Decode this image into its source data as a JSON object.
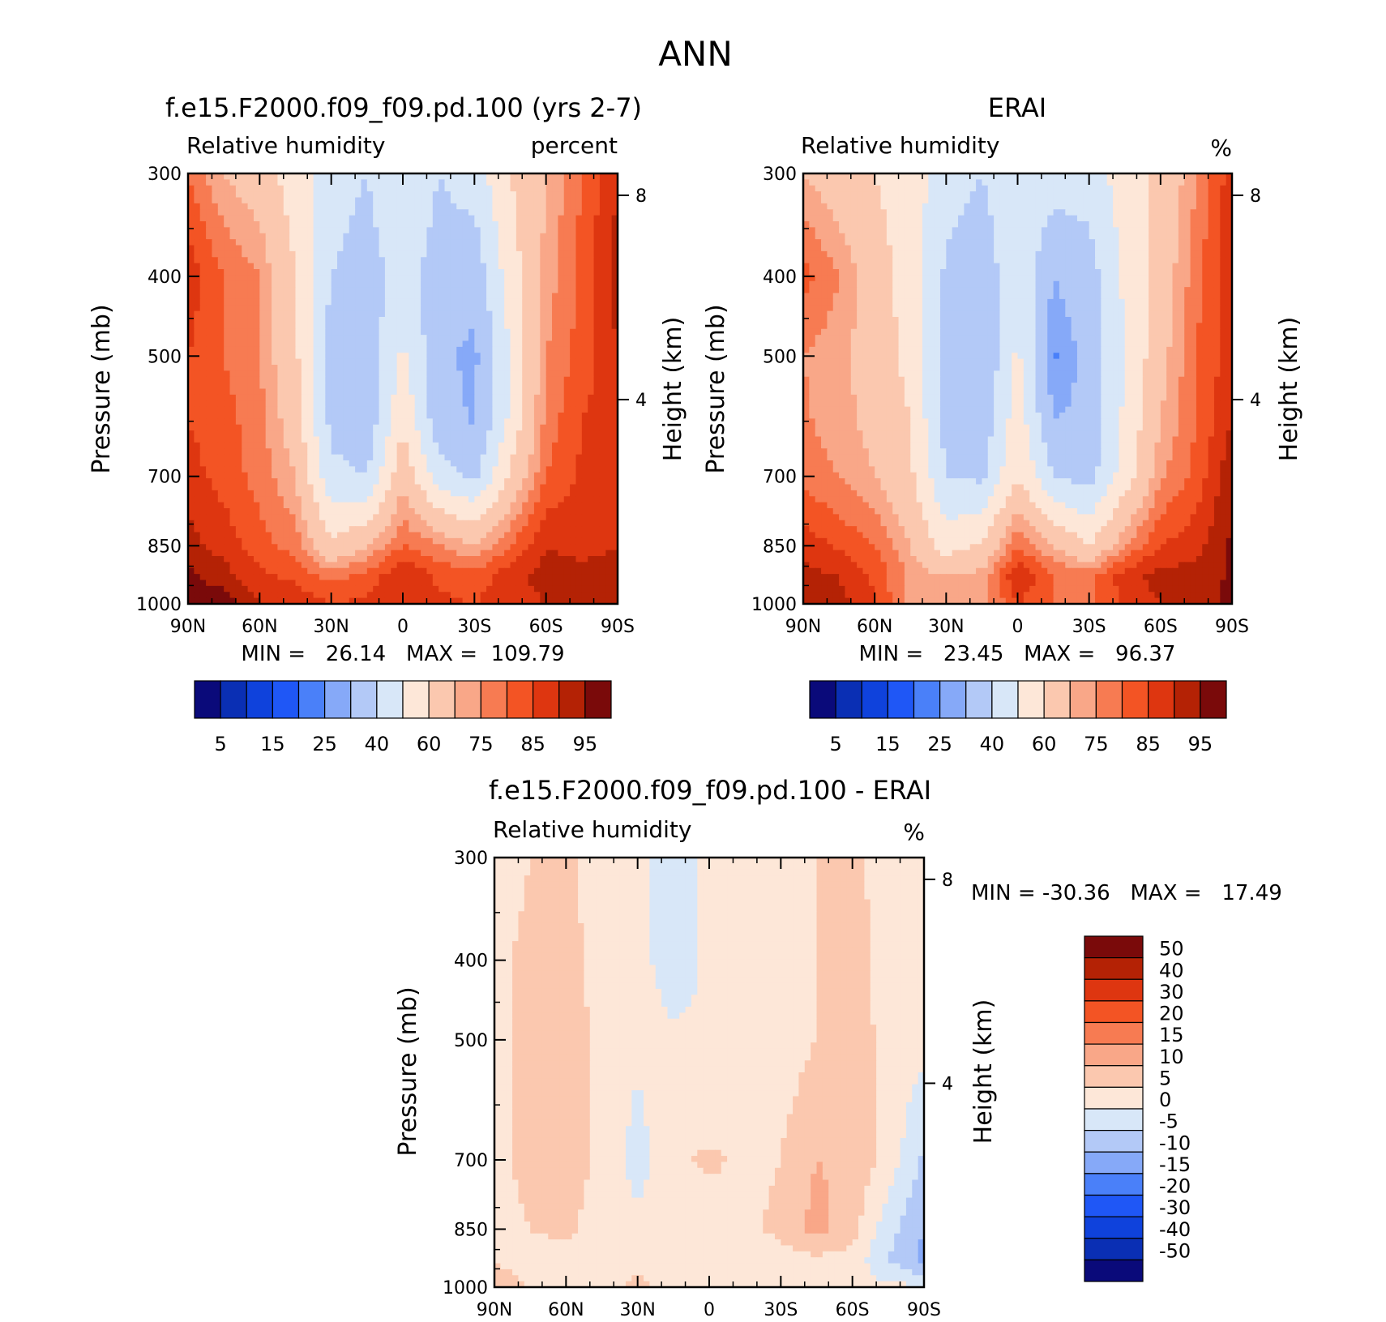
{
  "figure_title": "ANN",
  "axis_common": {
    "pressure_ticks": [
      "300",
      "400",
      "500",
      "700",
      "850",
      "1000"
    ],
    "pressure_values": [
      300,
      400,
      500,
      700,
      850,
      1000
    ],
    "lat_ticks": [
      "90N",
      "60N",
      "30N",
      "0",
      "30S",
      "60S",
      "90S"
    ],
    "lat_values": [
      90,
      60,
      30,
      0,
      -30,
      -60,
      -90
    ],
    "height_ticks": [
      "8",
      "4"
    ],
    "height_values_km": [
      8,
      4
    ],
    "ylabel_left": "Pressure (mb)",
    "ylabel_right": "Height (km)"
  },
  "panels": [
    {
      "id": "model",
      "title": "f.e15.F2000.f09_f09.pd.100 (yrs 2-7)",
      "left_label": "Relative humidity",
      "right_label": "percent",
      "stats": "MIN =   26.14   MAX =  109.79"
    },
    {
      "id": "obs",
      "title": "ERAI",
      "left_label": "Relative humidity",
      "right_label": "%",
      "stats": "MIN =   23.45   MAX =   96.37"
    },
    {
      "id": "diff",
      "title": "f.e15.F2000.f09_f09.pd.100 - ERAI",
      "left_label": "Relative humidity",
      "right_label": "%",
      "stats": "MIN = -30.36   MAX =   17.49"
    }
  ],
  "colorbar_abs": {
    "labels": [
      "5",
      "15",
      "25",
      "40",
      "60",
      "75",
      "85",
      "95"
    ],
    "colors": [
      "#0a0a7a",
      "#0a2fb4",
      "#0f42dc",
      "#1f57f6",
      "#4a80f9",
      "#86a9f8",
      "#b3c9f7",
      "#d8e7f8",
      "#fde7d8",
      "#fbc8af",
      "#f9a788",
      "#f77b52",
      "#f35424",
      "#de3610",
      "#b42205",
      "#7a0a0a"
    ]
  },
  "colorbar_diff": {
    "labels": [
      "50",
      "40",
      "30",
      "20",
      "15",
      "10",
      "5",
      "0",
      "-5",
      "-10",
      "-15",
      "-20",
      "-30",
      "-40",
      "-50"
    ],
    "colors": [
      "#7a0a0a",
      "#b42205",
      "#de3610",
      "#f35424",
      "#f77b52",
      "#f9a788",
      "#fbc8af",
      "#fde7d8",
      "#d8e7f8",
      "#b3c9f7",
      "#86a9f8",
      "#4a80f9",
      "#1f57f6",
      "#0f42dc",
      "#0a2fb4",
      "#0a0a7a"
    ]
  },
  "chart_data": [
    {
      "type": "heatmap",
      "title": "f.e15.F2000.f09_f09.pd.100 (yrs 2-7)",
      "variable": "Relative humidity",
      "units": "percent",
      "xlabel": "latitude",
      "ylabel": "Pressure (mb)",
      "x": [
        90,
        75,
        60,
        45,
        30,
        15,
        0,
        -15,
        -30,
        -45,
        -60,
        -75,
        -90
      ],
      "y": [
        300,
        400,
        500,
        600,
        700,
        850,
        925,
        1000
      ],
      "values": [
        [
          80,
          70,
          65,
          55,
          45,
          40,
          50,
          40,
          45,
          60,
          70,
          80,
          90
        ],
        [
          88,
          80,
          75,
          60,
          40,
          35,
          45,
          35,
          33,
          55,
          72,
          82,
          92
        ],
        [
          85,
          80,
          75,
          62,
          35,
          33,
          52,
          32,
          28,
          50,
          75,
          82,
          90
        ],
        [
          85,
          82,
          77,
          65,
          37,
          33,
          58,
          34,
          29,
          52,
          77,
          85,
          88
        ],
        [
          87,
          83,
          78,
          70,
          43,
          40,
          68,
          45,
          38,
          62,
          80,
          86,
          88
        ],
        [
          92,
          88,
          82,
          78,
          62,
          70,
          80,
          76,
          70,
          80,
          90,
          88,
          90
        ],
        [
          96,
          92,
          86,
          84,
          78,
          82,
          90,
          84,
          82,
          88,
          92,
          92,
          92
        ],
        [
          100,
          98,
          90,
          88,
          85,
          86,
          88,
          86,
          85,
          88,
          90,
          92,
          92
        ]
      ],
      "xlim": [
        90,
        -90
      ],
      "ylim": [
        300,
        1000
      ],
      "min": 26.14,
      "max": 109.79
    },
    {
      "type": "heatmap",
      "title": "ERAI",
      "variable": "Relative humidity",
      "units": "%",
      "xlabel": "latitude",
      "ylabel": "Pressure (mb)",
      "x": [
        90,
        75,
        60,
        45,
        30,
        15,
        0,
        -15,
        -30,
        -45,
        -60,
        -75,
        -90
      ],
      "y": [
        300,
        400,
        500,
        600,
        700,
        850,
        925,
        1000
      ],
      "values": [
        [
          70,
          65,
          60,
          55,
          45,
          40,
          50,
          45,
          45,
          55,
          62,
          75,
          88
        ],
        [
          82,
          75,
          65,
          55,
          38,
          33,
          48,
          30,
          35,
          52,
          65,
          78,
          90
        ],
        [
          75,
          72,
          66,
          57,
          36,
          30,
          52,
          24,
          33,
          50,
          67,
          80,
          88
        ],
        [
          76,
          72,
          68,
          60,
          36,
          33,
          56,
          30,
          32,
          52,
          70,
          80,
          90
        ],
        [
          78,
          75,
          70,
          62,
          40,
          38,
          60,
          40,
          36,
          55,
          74,
          82,
          94
        ],
        [
          88,
          84,
          80,
          70,
          55,
          62,
          80,
          70,
          60,
          75,
          85,
          88,
          96
        ],
        [
          92,
          90,
          84,
          74,
          70,
          72,
          90,
          80,
          78,
          88,
          92,
          92,
          96
        ],
        [
          95,
          92,
          86,
          72,
          70,
          72,
          85,
          80,
          78,
          86,
          90,
          92,
          96
        ]
      ],
      "xlim": [
        90,
        -90
      ],
      "ylim": [
        300,
        1000
      ],
      "min": 23.45,
      "max": 96.37
    },
    {
      "type": "heatmap",
      "title": "f.e15.F2000.f09_f09.pd.100 - ERAI",
      "variable": "Relative humidity",
      "units": "%",
      "xlabel": "latitude",
      "ylabel": "Pressure (mb)",
      "x": [
        90,
        75,
        60,
        45,
        30,
        15,
        0,
        -15,
        -30,
        -45,
        -60,
        -75,
        -90
      ],
      "y": [
        300,
        400,
        500,
        600,
        700,
        850,
        925,
        1000
      ],
      "values": [
        [
          3,
          5,
          6,
          2,
          1,
          -3,
          1,
          2,
          3,
          5,
          6,
          3,
          2
        ],
        [
          4,
          6,
          7,
          3,
          2,
          -3,
          1,
          3,
          3,
          5,
          7,
          3,
          2
        ],
        [
          4,
          6,
          7,
          4,
          2,
          1,
          1,
          3,
          3,
          5,
          8,
          3,
          2
        ],
        [
          4,
          6,
          7,
          4,
          -1,
          4,
          2,
          3,
          4,
          7,
          8,
          4,
          -3
        ],
        [
          4,
          6,
          7,
          4,
          -2,
          4,
          6,
          4,
          5,
          10,
          9,
          3,
          -6
        ],
        [
          4,
          5,
          6,
          3,
          1,
          3,
          2,
          4,
          6,
          12,
          7,
          -3,
          -10
        ],
        [
          5,
          4,
          3,
          2,
          4,
          2,
          1,
          2,
          3,
          4,
          3,
          -5,
          -12
        ],
        [
          6,
          5,
          2,
          3,
          6,
          3,
          1,
          2,
          2,
          1,
          2,
          1,
          1
        ]
      ],
      "xlim": [
        90,
        -90
      ],
      "ylim": [
        300,
        1000
      ],
      "min": -30.36,
      "max": 17.49
    }
  ]
}
